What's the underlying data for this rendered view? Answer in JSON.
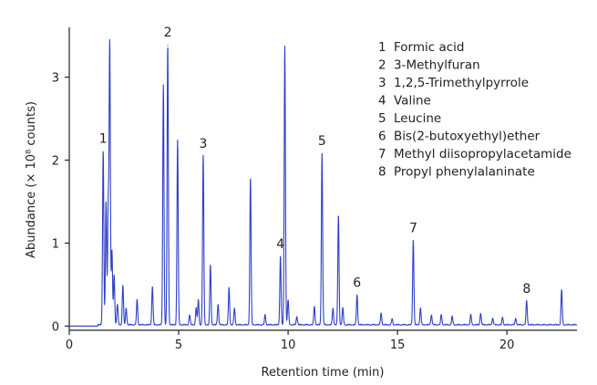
{
  "chart_data": {
    "type": "line",
    "xlabel": "Retention time (min)",
    "ylabel": "Abundance (× 10⁸ counts)",
    "xlim": [
      0,
      23.2
    ],
    "ylim": [
      -0.05,
      3.6
    ],
    "xticks": [
      "0",
      "5",
      "10",
      "15",
      "20"
    ],
    "yticks": [
      "0",
      "1",
      "2",
      "3"
    ],
    "line_color": "#2e3fc7",
    "legend": [
      {
        "num": "1",
        "name": "Formic acid"
      },
      {
        "num": "2",
        "name": "3-Methylfuran"
      },
      {
        "num": "3",
        "name": "1,2,5-Trimethylpyrrole"
      },
      {
        "num": "4",
        "name": "Valine"
      },
      {
        "num": "5",
        "name": "Leucine"
      },
      {
        "num": "6",
        "name": "Bis(2-butoxyethyl)ether"
      },
      {
        "num": "7",
        "name": "Methyl diisopropylacetamide"
      },
      {
        "num": "8",
        "name": "Propyl phenylalaninate"
      }
    ],
    "labeled_peaks": [
      {
        "label": "1",
        "x": 1.55,
        "y": 2.1
      },
      {
        "label": "2",
        "x": 4.5,
        "y": 3.38
      },
      {
        "label": "3",
        "x": 6.12,
        "y": 2.04
      },
      {
        "label": "4",
        "x": 9.65,
        "y": 0.83
      },
      {
        "label": "5",
        "x": 11.55,
        "y": 2.07
      },
      {
        "label": "6",
        "x": 13.15,
        "y": 0.36
      },
      {
        "label": "7",
        "x": 15.72,
        "y": 1.02
      },
      {
        "label": "8",
        "x": 20.9,
        "y": 0.29
      }
    ],
    "peaks": [
      [
        1.55,
        2.1
      ],
      [
        1.68,
        1.48
      ],
      [
        1.78,
        1.42
      ],
      [
        1.85,
        3.38
      ],
      [
        1.95,
        0.9
      ],
      [
        2.05,
        0.6
      ],
      [
        2.2,
        0.25
      ],
      [
        2.45,
        0.48
      ],
      [
        2.6,
        0.2
      ],
      [
        3.1,
        0.3
      ],
      [
        3.8,
        0.46
      ],
      [
        4.3,
        2.9
      ],
      [
        4.5,
        3.38
      ],
      [
        4.95,
        2.22
      ],
      [
        5.5,
        0.12
      ],
      [
        5.8,
        0.2
      ],
      [
        5.9,
        0.3
      ],
      [
        6.12,
        2.04
      ],
      [
        6.45,
        0.72
      ],
      [
        6.8,
        0.25
      ],
      [
        7.3,
        0.45
      ],
      [
        7.55,
        0.2
      ],
      [
        8.28,
        1.77
      ],
      [
        8.95,
        0.12
      ],
      [
        9.65,
        0.83
      ],
      [
        9.85,
        3.36
      ],
      [
        10.0,
        0.3
      ],
      [
        10.4,
        0.1
      ],
      [
        11.2,
        0.22
      ],
      [
        11.55,
        2.07
      ],
      [
        12.05,
        0.2
      ],
      [
        12.3,
        1.32
      ],
      [
        12.5,
        0.2
      ],
      [
        13.15,
        0.36
      ],
      [
        14.25,
        0.14
      ],
      [
        14.75,
        0.07
      ],
      [
        15.72,
        1.02
      ],
      [
        16.05,
        0.2
      ],
      [
        16.55,
        0.12
      ],
      [
        17.0,
        0.12
      ],
      [
        17.5,
        0.1
      ],
      [
        18.35,
        0.12
      ],
      [
        18.8,
        0.14
      ],
      [
        19.35,
        0.08
      ],
      [
        19.8,
        0.09
      ],
      [
        20.4,
        0.08
      ],
      [
        20.9,
        0.29
      ],
      [
        22.5,
        0.42
      ]
    ]
  }
}
